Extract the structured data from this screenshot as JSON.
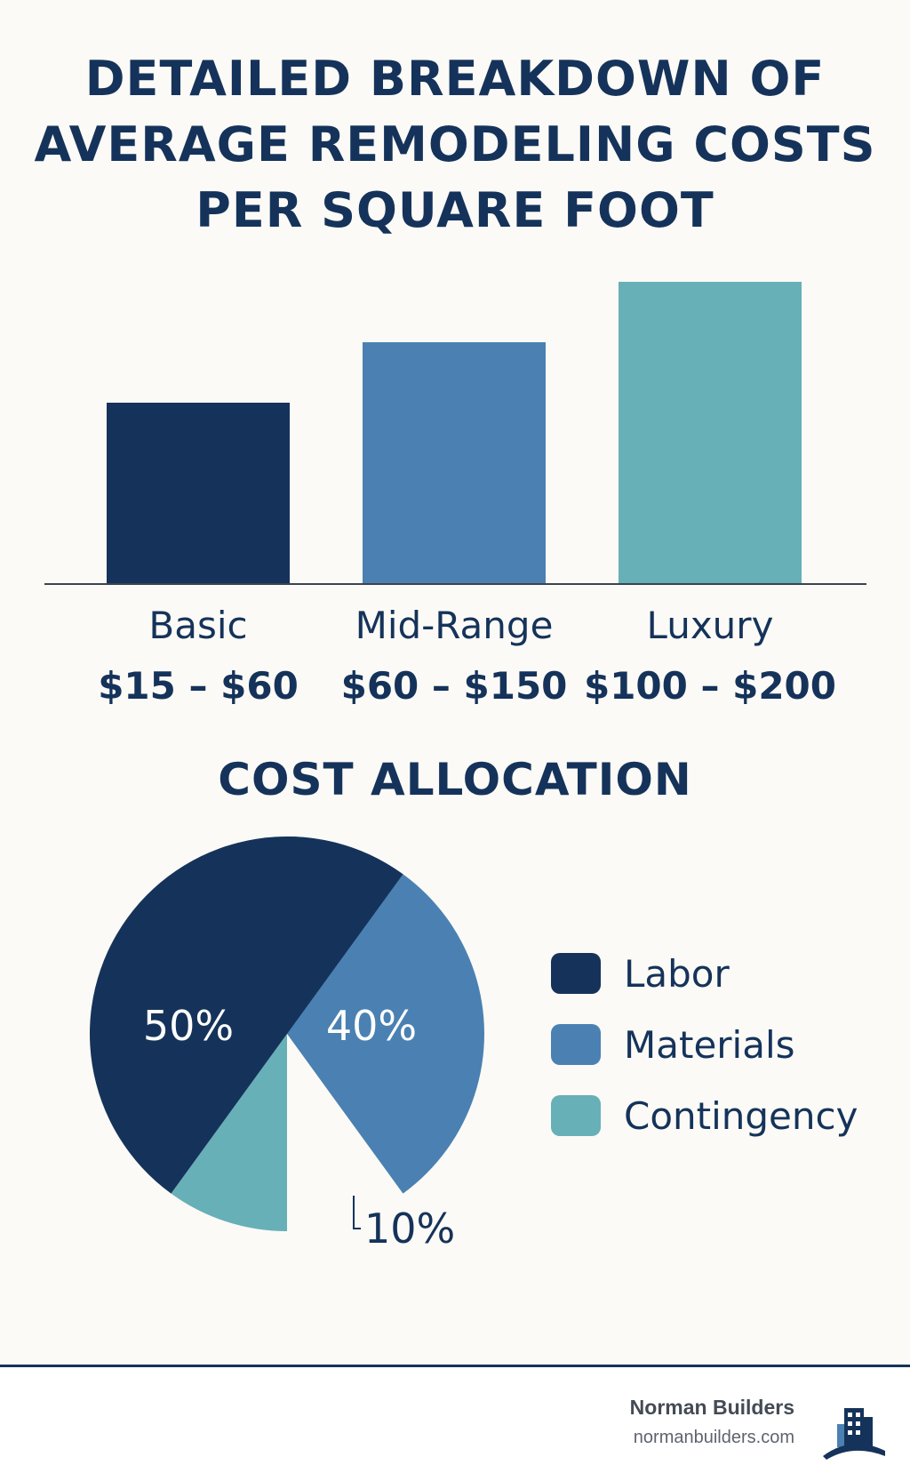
{
  "title_lines": [
    "DETAILED BREAKDOWN OF",
    "AVERAGE REMODELING COSTS",
    "PER SQUARE FOOT"
  ],
  "colors": {
    "navy": "#15335a",
    "blue": "#4a81b2",
    "teal": "#67b0b8",
    "background": "#fcfaf6"
  },
  "chart_data": [
    {
      "type": "bar",
      "categories": [
        "Basic",
        "Mid-Range",
        "Luxury"
      ],
      "ranges": [
        "$15 – $60",
        "$60 – $150",
        "$100 – $200"
      ],
      "values": [
        60,
        80,
        100
      ],
      "ylim": [
        0,
        100
      ],
      "colors": [
        "#15335a",
        "#4a81b2",
        "#67b0b8"
      ],
      "grid": false
    },
    {
      "type": "pie",
      "title": "COST ALLOCATION",
      "labels": [
        "Labor",
        "Materials",
        "Contingency"
      ],
      "values": [
        50,
        40,
        10
      ],
      "value_labels": [
        "50%",
        "40%",
        "10%"
      ],
      "colors": [
        "#15335a",
        "#4a81b2",
        "#67b0b8"
      ],
      "legend": "right"
    }
  ],
  "footer": {
    "brand_name": "Norman Builders",
    "brand_url": "normanbuilders.com",
    "logo_icon": "building-logo-icon"
  }
}
